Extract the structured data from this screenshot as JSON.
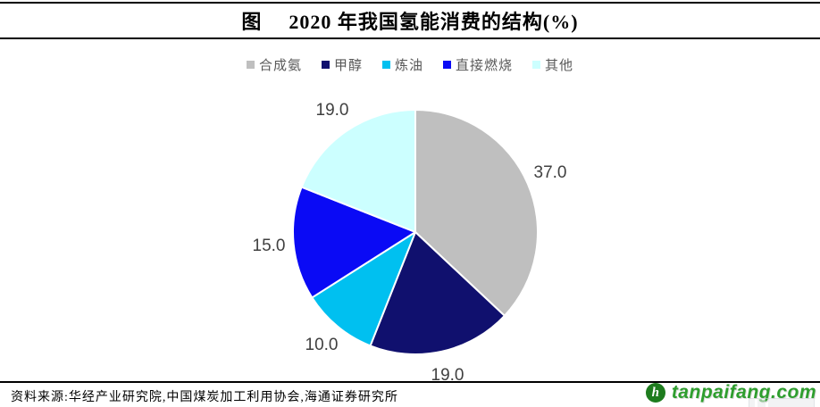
{
  "header": {
    "title_prefix": "图",
    "title_main": "2020 年我国氢能消费的结构(%)"
  },
  "chart_data": {
    "type": "pie",
    "title": "2020 年我国氢能消费的结构(%)",
    "categories": [
      "合成氨",
      "甲醇",
      "炼油",
      "直接燃烧",
      "其他"
    ],
    "values": [
      37.0,
      19.0,
      10.0,
      15.0,
      19.0
    ],
    "colors": [
      "#BFBFBF",
      "#10106E",
      "#00C0F0",
      "#0A0AF5",
      "#CCFFFF"
    ],
    "unit": "%",
    "start_angle_deg_from_top": 0,
    "direction": "clockwise",
    "legend_position": "top",
    "label_format": "one-decimal",
    "label_color": "#404040"
  },
  "footer": {
    "source_text": "资料来源:华经产业研究院,中国煤炭加工利用协会,海通证券研究所"
  },
  "watermark": {
    "site": "tanpaifang.com",
    "logo_letter": "h",
    "text_color": "#2E9E2E",
    "logo_color": "#1E7C1E"
  }
}
